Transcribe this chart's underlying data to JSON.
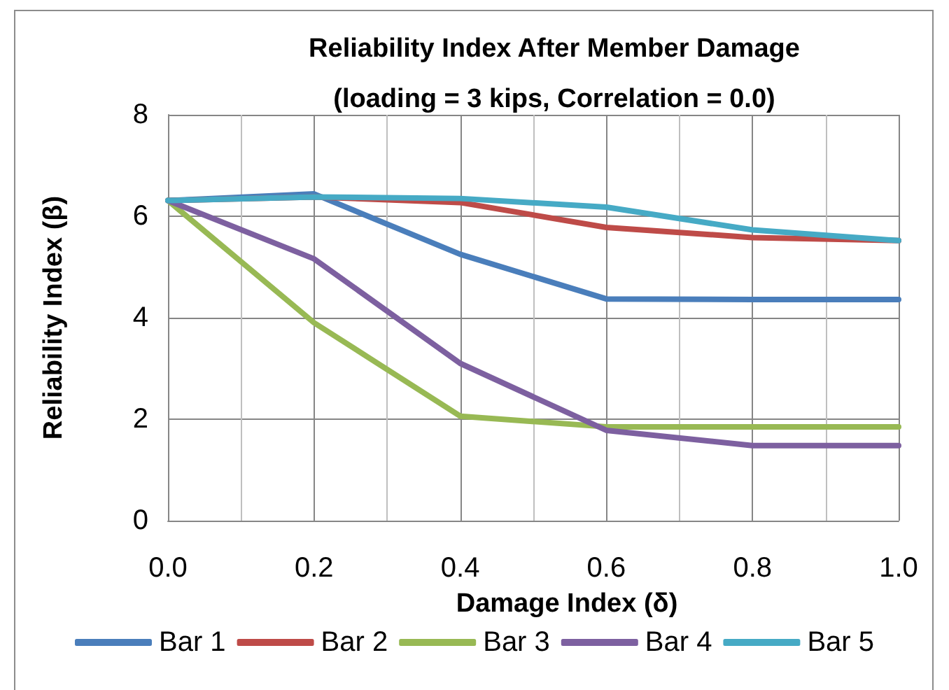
{
  "chart_data": {
    "type": "line",
    "title": "Reliability Index After Member Damage\n(loading = 3 kips, Correlation = 0.0)",
    "xlabel": "Damage Index (δ)",
    "ylabel": "Reliability Index (β)",
    "x": [
      0,
      0.2,
      0.4,
      0.6,
      0.8,
      1.0
    ],
    "series": [
      {
        "name": "Bar 1",
        "color": "#4a7ebb",
        "values": [
          6.31,
          6.44,
          5.25,
          4.37,
          4.36,
          4.36
        ]
      },
      {
        "name": "Bar 2",
        "color": "#be4b48",
        "values": [
          6.31,
          6.38,
          6.27,
          5.78,
          5.58,
          5.52
        ]
      },
      {
        "name": "Bar 3",
        "color": "#98b954",
        "values": [
          6.31,
          3.9,
          2.06,
          1.85,
          1.85,
          1.85
        ]
      },
      {
        "name": "Bar 4",
        "color": "#7d60a0",
        "values": [
          6.31,
          5.16,
          3.1,
          1.78,
          1.48,
          1.48
        ]
      },
      {
        "name": "Bar 5",
        "color": "#46aac5",
        "values": [
          6.31,
          6.38,
          6.35,
          6.18,
          5.73,
          5.52
        ]
      }
    ],
    "xlim": [
      0,
      1
    ],
    "xticks": [
      {
        "value": 0,
        "label": "0.0"
      },
      {
        "value": 0.1,
        "label": null
      },
      {
        "value": 0.2,
        "label": "0.2"
      },
      {
        "value": 0.3,
        "label": null
      },
      {
        "value": 0.4,
        "label": "0.4"
      },
      {
        "value": 0.5,
        "label": null
      },
      {
        "value": 0.6,
        "label": "0.6"
      },
      {
        "value": 0.7,
        "label": null
      },
      {
        "value": 0.8,
        "label": "0.8"
      },
      {
        "value": 0.9,
        "label": null
      },
      {
        "value": 1,
        "label": "1.0"
      }
    ],
    "ylim": [
      0,
      8
    ],
    "yticks": [
      0,
      2,
      4,
      6,
      8
    ],
    "grid": true,
    "legend": "bottom",
    "marker": "none",
    "line_style": "solid"
  }
}
